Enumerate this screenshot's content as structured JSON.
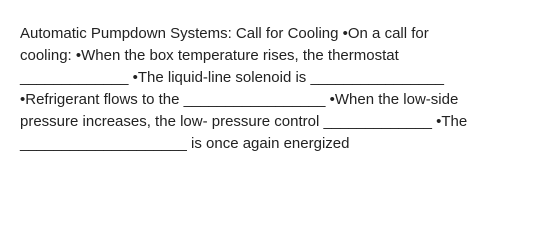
{
  "text": {
    "lines": [
      "Automatic Pumpdown Systems: Call for Cooling •On a call for",
      "cooling: •When the box temperature rises, the thermostat",
      "_____________ •The liquid-line solenoid is ________________",
      "•Refrigerant flows to the _________________ •When the low-side",
      "pressure increases, the low- pressure control _____________ •The",
      "____________________ is once again energized"
    ]
  }
}
